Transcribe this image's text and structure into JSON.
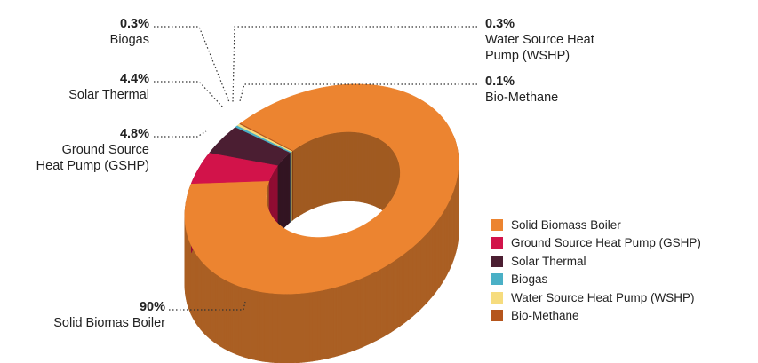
{
  "chart_data": {
    "type": "pie",
    "variant": "3d-donut",
    "categories": [
      "Solid Biomass Boiler",
      "Ground Source Heat Pump (GSHP)",
      "Solar Thermal",
      "Biogas",
      "Water Source Heat Pump (WSHP)",
      "Bio-Methane"
    ],
    "values": [
      90,
      4.8,
      4.4,
      0.3,
      0.3,
      0.1
    ],
    "colors": [
      "#ec8430",
      "#d2134a",
      "#4b1e32",
      "#4ab0c6",
      "#f6dc7e",
      "#b5551c"
    ],
    "legend": {
      "position": "bottom-right"
    },
    "annotations": [
      {
        "pct": "0.3%",
        "label_lines": [
          "Biogas"
        ]
      },
      {
        "pct": "4.4%",
        "label_lines": [
          "Solar Thermal"
        ]
      },
      {
        "pct": "4.8%",
        "label_lines": [
          "Ground Source",
          "Heat Pump (GSHP)"
        ]
      },
      {
        "pct": "0.3%",
        "label_lines": [
          "Water Source Heat",
          "Pump (WSHP)"
        ]
      },
      {
        "pct": "0.1%",
        "label_lines": [
          "Bio-Methane"
        ]
      },
      {
        "pct": "90%",
        "label_lines": [
          "Solid Biomas Boiler"
        ]
      }
    ]
  }
}
